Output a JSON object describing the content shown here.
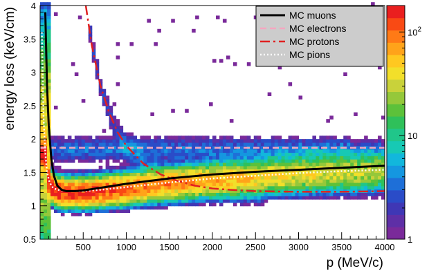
{
  "chart_data": {
    "type": "heatmap",
    "xlabel": "p (MeV/c)",
    "ylabel": "energy loss (keV/cm)",
    "xlim": [
      0,
      4000
    ],
    "ylim": [
      0.5,
      4
    ],
    "x_ticks": [
      "500",
      "1000",
      "1500",
      "2000",
      "2500",
      "3000",
      "3500",
      "4000"
    ],
    "y_ticks": [
      "0.5",
      "1",
      "1.5",
      "2",
      "2.5",
      "3",
      "3.5",
      "4"
    ],
    "colorbar": {
      "scale": "log",
      "range": [
        1,
        180
      ],
      "tick_labels": [
        {
          "value": 1,
          "text": "1"
        },
        {
          "value": 10,
          "text": "10"
        },
        {
          "value": 100,
          "text": "10",
          "exponent": "2"
        }
      ]
    },
    "legend": {
      "position": "top-right",
      "entries": [
        {
          "label": "MC muons",
          "style": "solid",
          "color": "#000000"
        },
        {
          "label": "MC electrons",
          "style": "dashed",
          "color": "#f4a7c0"
        },
        {
          "label": "MC protons",
          "style": "dash-dot",
          "color": "#e02020"
        },
        {
          "label": "MC pions",
          "style": "dotted",
          "color": "#ffffff"
        }
      ]
    },
    "series": [
      {
        "name": "MC muons",
        "x": [
          60,
          80,
          100,
          130,
          160,
          200,
          250,
          300,
          350,
          400,
          500,
          600,
          800,
          1000,
          1500,
          2000,
          2500,
          3000,
          3500,
          4000
        ],
        "y": [
          3.9,
          2.8,
          2.2,
          1.7,
          1.45,
          1.3,
          1.24,
          1.22,
          1.22,
          1.22,
          1.23,
          1.25,
          1.29,
          1.33,
          1.41,
          1.47,
          1.51,
          1.54,
          1.57,
          1.6
        ]
      },
      {
        "name": "MC electrons",
        "x": [
          0,
          500,
          1000,
          2000,
          3000,
          4000
        ],
        "y": [
          1.87,
          1.87,
          1.87,
          1.87,
          1.87,
          1.87
        ]
      },
      {
        "name": "MC protons",
        "x": [
          530,
          600,
          700,
          800,
          900,
          1000,
          1200,
          1400,
          1600,
          1800,
          2000,
          2200,
          2500,
          3000,
          3500,
          4000
        ],
        "y": [
          4.0,
          3.4,
          2.8,
          2.4,
          2.1,
          1.9,
          1.63,
          1.47,
          1.37,
          1.3,
          1.26,
          1.24,
          1.22,
          1.21,
          1.21,
          1.22
        ]
      },
      {
        "name": "MC pions",
        "x": [
          20,
          40,
          60,
          80,
          110,
          150,
          200,
          250,
          300,
          400,
          500,
          700,
          1000,
          1500,
          2000,
          2500,
          3000,
          3500,
          4000
        ],
        "y": [
          3.6,
          2.3,
          1.8,
          1.5,
          1.35,
          1.27,
          1.24,
          1.23,
          1.22,
          1.22,
          1.22,
          1.24,
          1.28,
          1.35,
          1.41,
          1.45,
          1.49,
          1.52,
          1.54
        ]
      }
    ]
  }
}
